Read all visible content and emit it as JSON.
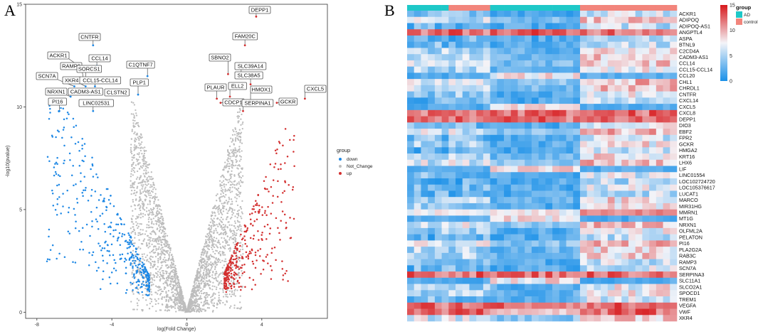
{
  "figure": {
    "panel_a_letter": "A",
    "panel_b_letter": "B"
  },
  "colors": {
    "down": "#1e88e5",
    "not_change": "#bdbdbd",
    "up": "#d32f2f",
    "ad": "#1ec8c8",
    "control": "#f2857c",
    "heat_low": "#1a90e8",
    "heat_mid": "#f4f4f8",
    "heat_high": "#d7191c"
  },
  "chart_data": [
    {
      "type": "scatter",
      "title": "",
      "xlabel": "log(Fold Change)",
      "ylabel": "-log10(pvalue)",
      "xlim": [
        -8.6,
        7.5
      ],
      "ylim": [
        -0.3,
        15
      ],
      "x_ticks": [
        -8,
        -4,
        0,
        4
      ],
      "y_ticks": [
        0,
        5,
        10,
        15
      ],
      "legend": {
        "title": "group",
        "position": "right",
        "entries": [
          "down",
          "Not_Change",
          "up"
        ]
      },
      "series_note": "Thousands of points: Not_Change fills a V shape around 0; down points left of -2, up points right of +2; rendered procedurally from these parameters",
      "series": [
        {
          "name": "down",
          "count": 380,
          "x_range": [
            -7.5,
            -2.0
          ]
        },
        {
          "name": "Not_Change",
          "count": 2600,
          "x_range": [
            -3.0,
            3.0
          ]
        },
        {
          "name": "up",
          "count": 320,
          "x_range": [
            2.0,
            5.8
          ]
        }
      ],
      "annotations": [
        {
          "label": "DEPP1",
          "x": 3.7,
          "y": 14.4
        },
        {
          "label": "CNTFR",
          "x": -5.0,
          "y": 13.0
        },
        {
          "label": "FAM20C",
          "x": 3.1,
          "y": 13.0
        },
        {
          "label": "CCL14",
          "x": -4.8,
          "y": 12.0
        },
        {
          "label": "ACKR1",
          "x": -5.6,
          "y": 11.9
        },
        {
          "label": "SBNO2",
          "x": 2.2,
          "y": 11.6
        },
        {
          "label": "SLC39A14",
          "x": 2.9,
          "y": 11.4
        },
        {
          "label": "RAMP3",
          "x": -5.5,
          "y": 11.3
        },
        {
          "label": "SORCS1",
          "x": -5.4,
          "y": 11.2
        },
        {
          "label": "C1QTNF7",
          "x": -2.1,
          "y": 11.5
        },
        {
          "label": "SLC38A5",
          "x": 3.4,
          "y": 11.1
        },
        {
          "label": "SCN7A",
          "x": -6.0,
          "y": 11.0
        },
        {
          "label": "XKR4",
          "x": -5.4,
          "y": 11.0
        },
        {
          "label": "CCL15-CCL14",
          "x": -4.9,
          "y": 11.0
        },
        {
          "label": "PLP1",
          "x": -2.6,
          "y": 10.6
        },
        {
          "label": "PLAUR",
          "x": 1.6,
          "y": 10.4
        },
        {
          "label": "ELL2",
          "x": 2.3,
          "y": 10.5
        },
        {
          "label": "HMOX1",
          "x": 3.4,
          "y": 10.2
        },
        {
          "label": "CXCL5",
          "x": 6.3,
          "y": 10.4
        },
        {
          "label": "NRXN1",
          "x": -6.2,
          "y": 10.5
        },
        {
          "label": "CADM3-AS1",
          "x": -5.2,
          "y": 10.6
        },
        {
          "label": "CLSTN2",
          "x": -3.6,
          "y": 10.6
        },
        {
          "label": "PI16",
          "x": -6.8,
          "y": 9.8
        },
        {
          "label": "LINC02531",
          "x": -5.0,
          "y": 9.8
        },
        {
          "label": "CDCP1",
          "x": 1.8,
          "y": 10.2
        },
        {
          "label": "SERPINA1",
          "x": 3.0,
          "y": 9.8
        },
        {
          "label": "GCKR",
          "x": 4.8,
          "y": 10.2
        }
      ]
    },
    {
      "type": "heatmap",
      "title": "",
      "legend_title": "group",
      "groups": [
        "AD",
        "control"
      ],
      "top_annotation": [
        "AD",
        "AD",
        "AD",
        "AD",
        "AD",
        "AD",
        "control",
        "control",
        "control",
        "control",
        "control",
        "control",
        "AD",
        "AD",
        "AD",
        "AD",
        "AD",
        "AD",
        "AD",
        "AD",
        "AD",
        "AD",
        "AD",
        "AD",
        "AD",
        "control",
        "control",
        "control",
        "control",
        "control",
        "control",
        "control",
        "control",
        "control",
        "control",
        "control",
        "control",
        "control",
        "control"
      ],
      "color_scale": {
        "min": 0,
        "max": 15,
        "ticks": [
          0,
          5,
          10,
          15
        ]
      },
      "rows": [
        "ACKR1",
        "ADIPOQ",
        "ADIPOQ-AS1",
        "ANGPTL4",
        "ASPA",
        "BTNL9",
        "C2CD4A",
        "CADM3-AS1",
        "CCL14",
        "CCL15-CCL14",
        "CCL20",
        "CHL1",
        "CHRDL1",
        "CNTFR",
        "CXCL14",
        "CXCL5",
        "CXCL8",
        "DEPP1",
        "DIO3",
        "EBF2",
        "FPR2",
        "GCKR",
        "HMGA2",
        "KRT16",
        "LHX6",
        "LIF",
        "LINC01554",
        "LOC102724720",
        "LOC105376617",
        "LUCAT1",
        "MARCO",
        "MIR31HG",
        "MMRN1",
        "MT1G",
        "NRXN1",
        "OLFML2A",
        "PELATON",
        "PI16",
        "PLA2G2A",
        "RAB3C",
        "RAMP3",
        "SCN7A",
        "SERPINA3",
        "SLC11A1",
        "SLCO2A1",
        "SPOCD1",
        "TREM1",
        "VEGFA",
        "VWF",
        "XKR4"
      ]
    }
  ]
}
